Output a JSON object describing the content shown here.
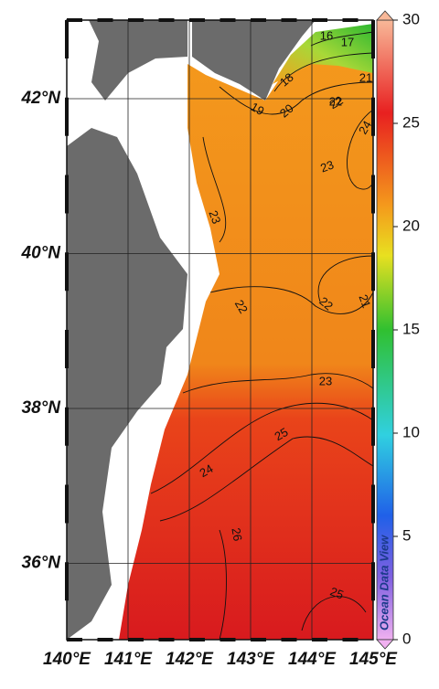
{
  "map": {
    "lon_labels": [
      "140°E",
      "141°E",
      "142°E",
      "143°E",
      "144°E",
      "145°E"
    ],
    "lat_labels": [
      "42°N",
      "40°N",
      "38°N",
      "36°N"
    ],
    "contour_labels": [
      "16",
      "17",
      "18",
      "19",
      "20",
      "21",
      "22",
      "22",
      "24",
      "23",
      "23",
      "22",
      "22",
      "21",
      "23",
      "25",
      "24",
      "26",
      "25"
    ],
    "watermark": "Ocean Data View",
    "colorbar": {
      "lim": [
        0,
        30
      ],
      "ticks": [
        0,
        5,
        10,
        15,
        20,
        25,
        30
      ]
    }
  }
}
